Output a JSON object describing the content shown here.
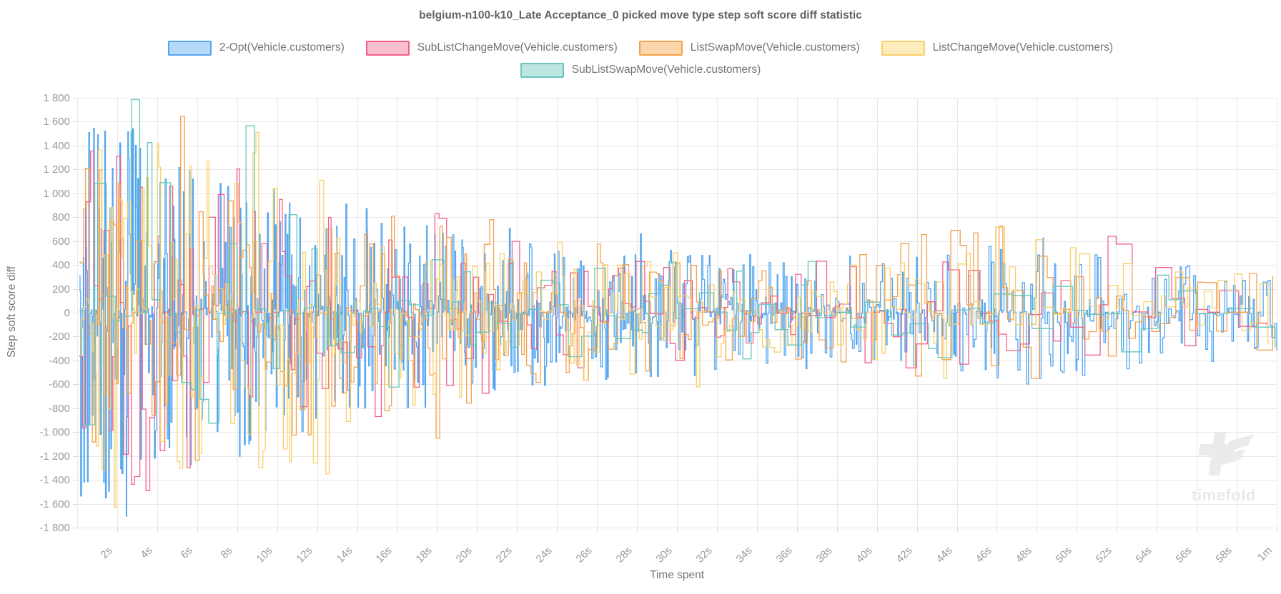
{
  "title": "belgium-n100-k10_Late Acceptance_0 picked move type step soft score diff statistic",
  "legend": {
    "items": [
      {
        "label": "2-Opt(Vehicle.customers)",
        "line_color": "#54a6f0",
        "fill_color": "#b4d9f9"
      },
      {
        "label": "SubListChangeMove(Vehicle.customers)",
        "line_color": "#f2608a",
        "fill_color": "#fabdce"
      },
      {
        "label": "ListSwapMove(Vehicle.customers)",
        "line_color": "#f5a14d",
        "fill_color": "#fbd5ab"
      },
      {
        "label": "ListChangeMove(Vehicle.customers)",
        "line_color": "#f8d06a",
        "fill_color": "#fdedbd"
      },
      {
        "label": "SubListSwapMove(Vehicle.customers)",
        "line_color": "#69c6b9",
        "fill_color": "#bce6df"
      }
    ]
  },
  "y_axis": {
    "title": "Step soft score diff",
    "ticks": [
      {
        "v": 1800,
        "label": "1 800"
      },
      {
        "v": 1600,
        "label": "1 600"
      },
      {
        "v": 1400,
        "label": "1 400"
      },
      {
        "v": 1200,
        "label": "1 200"
      },
      {
        "v": 1000,
        "label": "1 000"
      },
      {
        "v": 800,
        "label": "800"
      },
      {
        "v": 600,
        "label": "600"
      },
      {
        "v": 400,
        "label": "400"
      },
      {
        "v": 200,
        "label": "200"
      },
      {
        "v": 0,
        "label": "0"
      },
      {
        "v": -200,
        "label": "-200"
      },
      {
        "v": -400,
        "label": "-400"
      },
      {
        "v": -600,
        "label": "-600"
      },
      {
        "v": -800,
        "label": "-800"
      },
      {
        "v": -1000,
        "label": "-1 000"
      },
      {
        "v": -1200,
        "label": "-1 200"
      },
      {
        "v": -1400,
        "label": "-1 400"
      },
      {
        "v": -1600,
        "label": "-1 600"
      },
      {
        "v": -1800,
        "label": "-1 800"
      }
    ]
  },
  "x_axis": {
    "title": "Time spent",
    "ticks": [
      {
        "t": 2,
        "label": "2s"
      },
      {
        "t": 4,
        "label": "4s"
      },
      {
        "t": 6,
        "label": "6s"
      },
      {
        "t": 8,
        "label": "8s"
      },
      {
        "t": 10,
        "label": "10s"
      },
      {
        "t": 12,
        "label": "12s"
      },
      {
        "t": 14,
        "label": "14s"
      },
      {
        "t": 16,
        "label": "16s"
      },
      {
        "t": 18,
        "label": "18s"
      },
      {
        "t": 20,
        "label": "20s"
      },
      {
        "t": 22,
        "label": "22s"
      },
      {
        "t": 24,
        "label": "24s"
      },
      {
        "t": 26,
        "label": "26s"
      },
      {
        "t": 28,
        "label": "28s"
      },
      {
        "t": 30,
        "label": "30s"
      },
      {
        "t": 32,
        "label": "32s"
      },
      {
        "t": 34,
        "label": "34s"
      },
      {
        "t": 36,
        "label": "36s"
      },
      {
        "t": 38,
        "label": "38s"
      },
      {
        "t": 40,
        "label": "40s"
      },
      {
        "t": 42,
        "label": "42s"
      },
      {
        "t": 44,
        "label": "44s"
      },
      {
        "t": 46,
        "label": "46s"
      },
      {
        "t": 48,
        "label": "48s"
      },
      {
        "t": 50,
        "label": "50s"
      },
      {
        "t": 52,
        "label": "52s"
      },
      {
        "t": 54,
        "label": "54s"
      },
      {
        "t": 56,
        "label": "56s"
      },
      {
        "t": 58,
        "label": "58s"
      },
      {
        "t": 60,
        "label": "1m"
      }
    ]
  },
  "watermark": {
    "text": "timefold"
  },
  "chart_data": {
    "type": "line",
    "stepped": true,
    "title": "belgium-n100-k10_Late Acceptance_0 picked move type step soft score diff statistic",
    "xlabel": "Time spent",
    "ylabel": "Step soft score diff",
    "x_unit": "seconds",
    "xlim": [
      0,
      60
    ],
    "ylim": [
      -1800,
      1800
    ],
    "grid": true,
    "legend_position": "top",
    "grid_color": "#e8e8e8",
    "tick_color": "#d9d9d9",
    "description": "Noisy per-step soft score difference of each picked move type; amplitude decays from about ±1700 in the first seconds to about ±400 near one minute. Series below are reconstructed from amplitude envelopes [time_s, max_abs_diff] plus notable spikes [time_s, diff].",
    "series": [
      {
        "name": "2-Opt(Vehicle.customers)",
        "color": "#54a6f0",
        "seed": 1301,
        "points_per_sec": [
          26,
          9
        ],
        "value_power": 2.3,
        "envelope": [
          [
            0,
            1550
          ],
          [
            2,
            1700
          ],
          [
            4,
            1300
          ],
          [
            8,
            1250
          ],
          [
            12,
            1000
          ],
          [
            16,
            850
          ],
          [
            20,
            760
          ],
          [
            24,
            640
          ],
          [
            28,
            560
          ],
          [
            32,
            520
          ],
          [
            36,
            500
          ],
          [
            42,
            470
          ],
          [
            48,
            640
          ],
          [
            54,
            430
          ],
          [
            60,
            400
          ]
        ],
        "spikes": [
          [
            0.82,
            1545
          ],
          [
            2.45,
            -1705
          ],
          [
            5.6,
            1190
          ],
          [
            9.8,
            1030
          ],
          [
            21.6,
            705
          ],
          [
            28.1,
            660
          ],
          [
            48.3,
            625
          ]
        ]
      },
      {
        "name": "SubListChangeMove(Vehicle.customers)",
        "color": "#f2608a",
        "seed": 4517,
        "points_per_sec": [
          5,
          1.3
        ],
        "value_power": 1.7,
        "envelope": [
          [
            0,
            1300
          ],
          [
            2,
            1500
          ],
          [
            6,
            1300
          ],
          [
            10,
            1000
          ],
          [
            14,
            880
          ],
          [
            18,
            840
          ],
          [
            22,
            620
          ],
          [
            26,
            520
          ],
          [
            30,
            460
          ],
          [
            36,
            430
          ],
          [
            42,
            480
          ],
          [
            48,
            420
          ],
          [
            51,
            650
          ],
          [
            56,
            320
          ],
          [
            60,
            300
          ]
        ],
        "spikes": [
          [
            1.95,
            1310
          ],
          [
            3.4,
            -1490
          ],
          [
            7.9,
            1205
          ],
          [
            17.6,
            830
          ],
          [
            51.4,
            640
          ]
        ]
      },
      {
        "name": "ListSwapMove(Vehicle.customers)",
        "color": "#f5a14d",
        "seed": 2903,
        "points_per_sec": [
          7,
          1.6
        ],
        "value_power": 1.7,
        "envelope": [
          [
            0,
            1240
          ],
          [
            3,
            1150
          ],
          [
            5,
            1650
          ],
          [
            8,
            1250
          ],
          [
            12,
            1050
          ],
          [
            16,
            950
          ],
          [
            20,
            820
          ],
          [
            24,
            660
          ],
          [
            28,
            520
          ],
          [
            32,
            470
          ],
          [
            36,
            430
          ],
          [
            43,
            710
          ],
          [
            46,
            730
          ],
          [
            50,
            420
          ],
          [
            55,
            400
          ],
          [
            60,
            360
          ]
        ],
        "spikes": [
          [
            0.35,
            1210
          ],
          [
            5.05,
            1645
          ],
          [
            17.8,
            -1050
          ],
          [
            43.6,
            690
          ],
          [
            45.9,
            725
          ]
        ]
      },
      {
        "name": "ListChangeMove(Vehicle.customers)",
        "color": "#f8d06a",
        "seed": 7723,
        "points_per_sec": [
          8,
          1.8
        ],
        "value_power": 1.7,
        "envelope": [
          [
            0,
            1350
          ],
          [
            2,
            1620
          ],
          [
            6,
            1450
          ],
          [
            9,
            1520
          ],
          [
            13,
            1150
          ],
          [
            17,
            950
          ],
          [
            21,
            720
          ],
          [
            25,
            570
          ],
          [
            29,
            510
          ],
          [
            35,
            460
          ],
          [
            41,
            430
          ],
          [
            46,
            720
          ],
          [
            53,
            390
          ],
          [
            60,
            360
          ]
        ],
        "spikes": [
          [
            1.8,
            -1630
          ],
          [
            8.9,
            1510
          ],
          [
            12.4,
            -1350
          ],
          [
            30.9,
            -620
          ],
          [
            45.7,
            715
          ]
        ]
      },
      {
        "name": "SubListSwapMove(Vehicle.customers)",
        "color": "#69c6b9",
        "seed": 6151,
        "points_per_sec": [
          2.6,
          0.9
        ],
        "value_power": 1.5,
        "envelope": [
          [
            0,
            850
          ],
          [
            3,
            1800
          ],
          [
            6,
            950
          ],
          [
            9,
            1580
          ],
          [
            12,
            720
          ],
          [
            16,
            620
          ],
          [
            20,
            520
          ],
          [
            25,
            460
          ],
          [
            30,
            430
          ],
          [
            36,
            410
          ],
          [
            42,
            390
          ],
          [
            48,
            370
          ],
          [
            54,
            350
          ],
          [
            60,
            330
          ]
        ],
        "spikes": [
          [
            2.7,
            1785
          ],
          [
            8.35,
            1565
          ],
          [
            36.5,
            430
          ]
        ]
      }
    ],
    "draw_order": [
      0,
      1,
      2,
      3,
      4
    ]
  }
}
